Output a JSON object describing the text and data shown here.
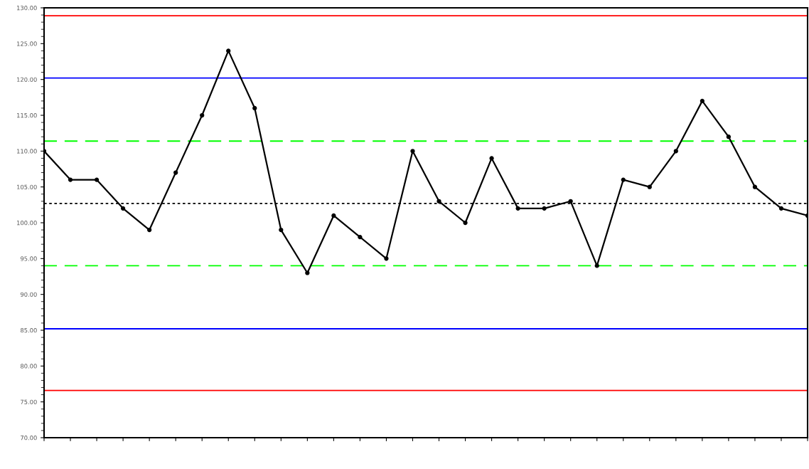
{
  "chart_data": {
    "type": "line",
    "categories": [
      null,
      null,
      null,
      null,
      null,
      null,
      null,
      null,
      null,
      null,
      null,
      null,
      null,
      null,
      null,
      null,
      null,
      null,
      null,
      null,
      null,
      null,
      null,
      null,
      null,
      null,
      null,
      null,
      null,
      null
    ],
    "series": [
      {
        "color": "#000000",
        "values": [
          110,
          106,
          106,
          102,
          99,
          107,
          115,
          124,
          116,
          99,
          93,
          101,
          98,
          95,
          110,
          103,
          100,
          109,
          102,
          102,
          103,
          94,
          106,
          105,
          110,
          117,
          112,
          105,
          102,
          101
        ]
      }
    ],
    "marker": "circle",
    "line_style": "solid",
    "grid": false,
    "ylim": [
      70,
      130
    ],
    "yticks": [
      {
        "value": 70,
        "label": "70.00"
      },
      {
        "value": 75,
        "label": "75.00"
      },
      {
        "value": 80,
        "label": "80.00"
      },
      {
        "value": 85,
        "label": "85.00"
      },
      {
        "value": 90,
        "label": "90.00"
      },
      {
        "value": 95,
        "label": "95.00"
      },
      {
        "value": 100,
        "label": "100.00"
      },
      {
        "value": 105,
        "label": "105.00"
      },
      {
        "value": 110,
        "label": "110.00"
      },
      {
        "value": 115,
        "label": "115.00"
      },
      {
        "value": 120,
        "label": "120.00"
      },
      {
        "value": 125,
        "label": "125.00"
      },
      {
        "value": 130,
        "label": "130.00"
      }
    ],
    "ref_lines": [
      {
        "axis": "y",
        "value": 128.9,
        "color": "#ff0000",
        "line_style": "solid"
      },
      {
        "axis": "y",
        "value": 120.2,
        "color": "#0000ff",
        "line_style": "solid"
      },
      {
        "axis": "y",
        "value": 111.4,
        "color": "#00ff00",
        "line_style": "dashed"
      },
      {
        "axis": "y",
        "value": 102.7,
        "color": "#000000",
        "line_style": "dotted"
      },
      {
        "axis": "y",
        "value": 94.0,
        "color": "#00ff00",
        "line_style": "dashed"
      },
      {
        "axis": "y",
        "value": 85.2,
        "color": "#0000ff",
        "line_style": "solid"
      },
      {
        "axis": "y",
        "value": 76.6,
        "color": "#ff0000",
        "line_style": "solid"
      }
    ]
  }
}
